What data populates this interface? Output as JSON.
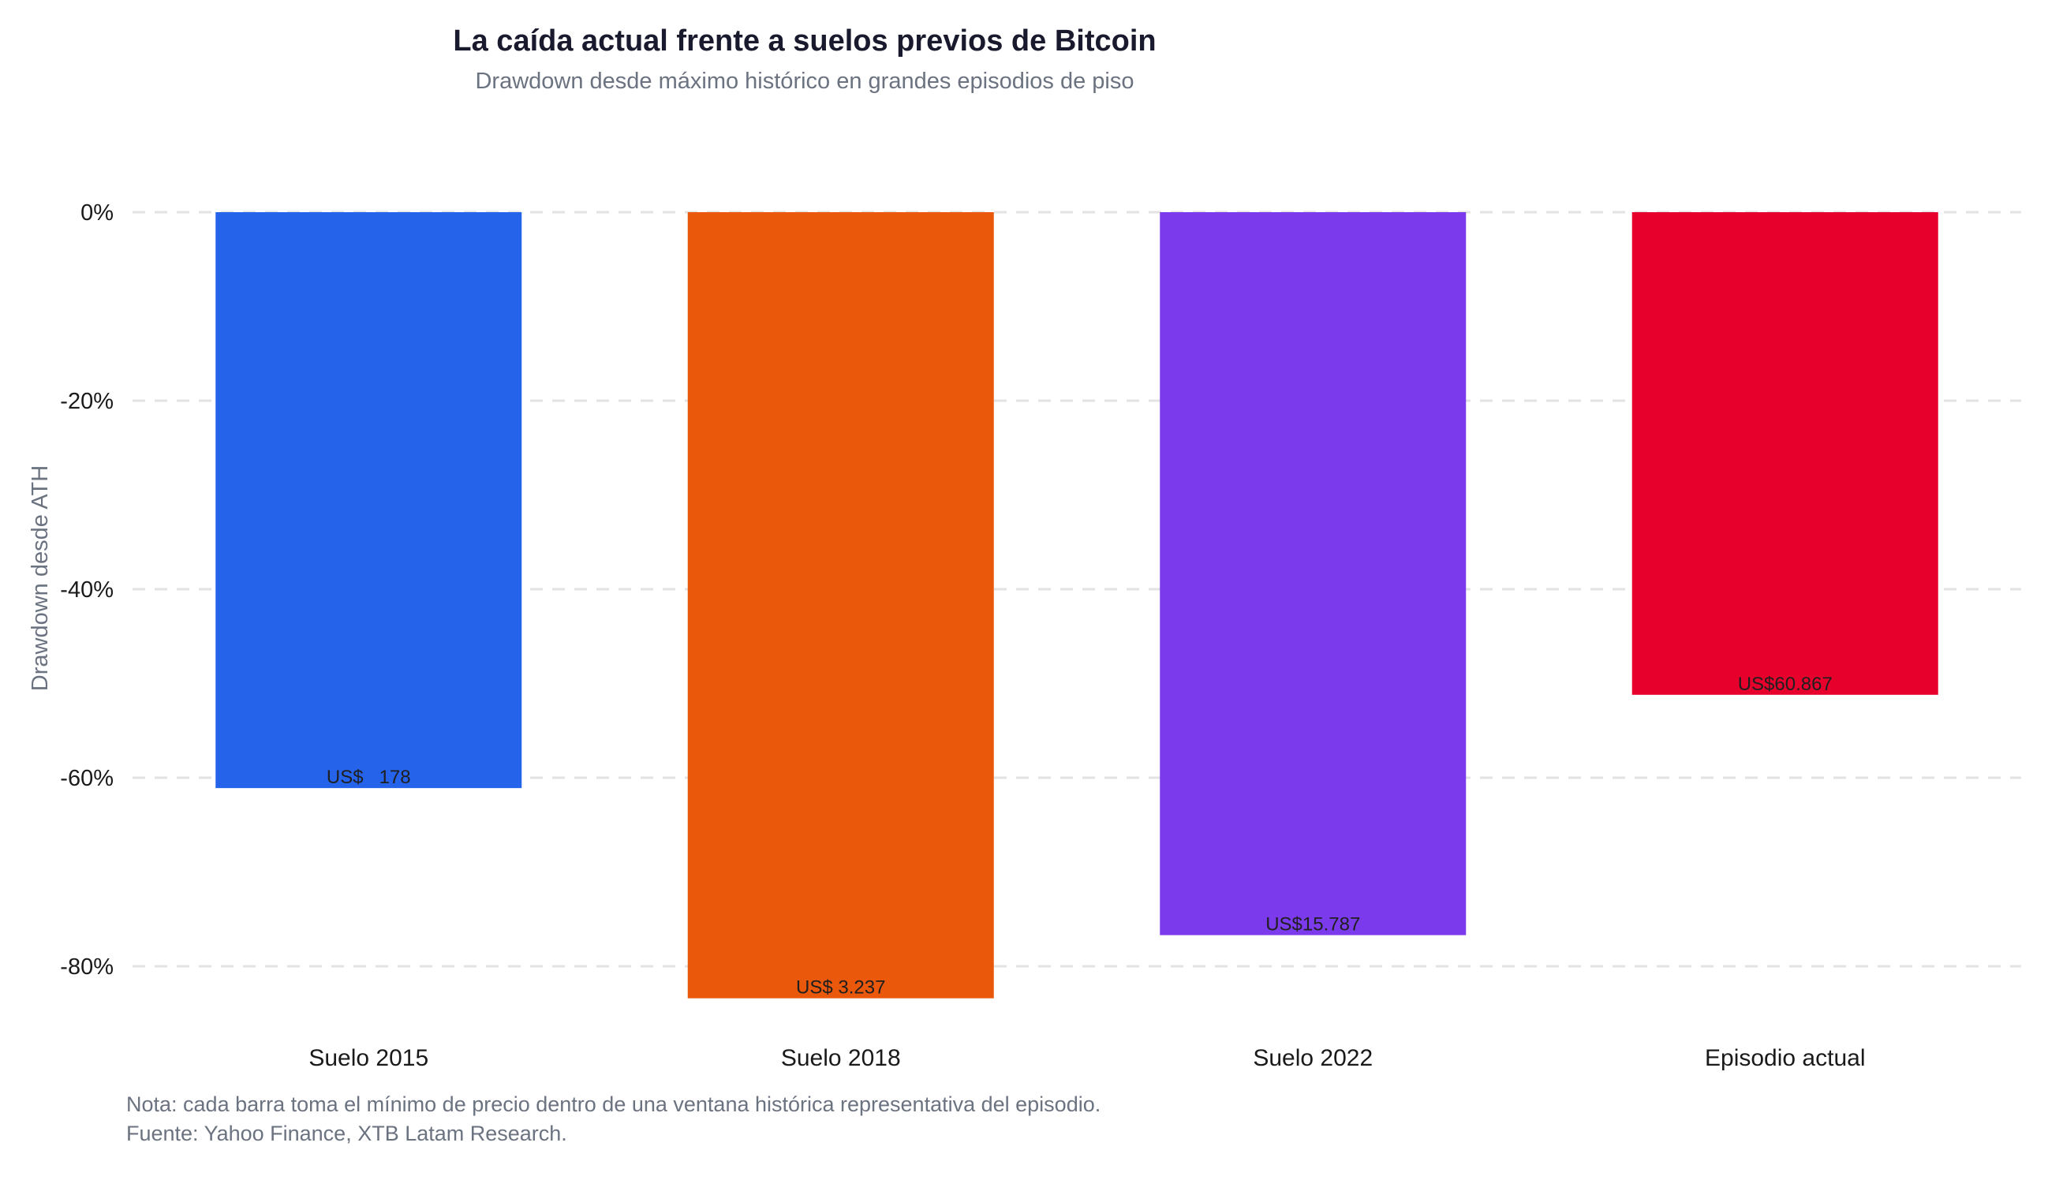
{
  "chart_data": {
    "type": "bar",
    "title": "La caída actual frente a suelos previos de Bitcoin",
    "subtitle": "Drawdown desde máximo histórico en grandes episodios de piso",
    "xlabel": "",
    "ylabel": "Drawdown desde ATH",
    "categories": [
      "Suelo 2015",
      "Suelo 2018",
      "Suelo 2022",
      "Episodio actual"
    ],
    "values": [
      -61.1,
      -83.4,
      -76.7,
      -51.2
    ],
    "data_labels": [
      "US$   178",
      "US$ 3.237",
      "US$15.787",
      "US$60.867"
    ],
    "colors": [
      "#2563eb",
      "#ea580c",
      "#7c3aed",
      "#e8002d"
    ],
    "ylim": [
      -86,
      5
    ],
    "yticks": [
      0,
      -20,
      -40,
      -60,
      -80
    ],
    "ytick_labels": [
      "0%",
      "-20%",
      "-40%",
      "-60%",
      "-80%"
    ],
    "grid": true,
    "legend": "none"
  },
  "notes": {
    "line1": "Nota: cada barra toma el mínimo de precio dentro de una ventana histórica representativa del episodio.",
    "line2": "Fuente: Yahoo Finance, XTB Latam Research."
  }
}
